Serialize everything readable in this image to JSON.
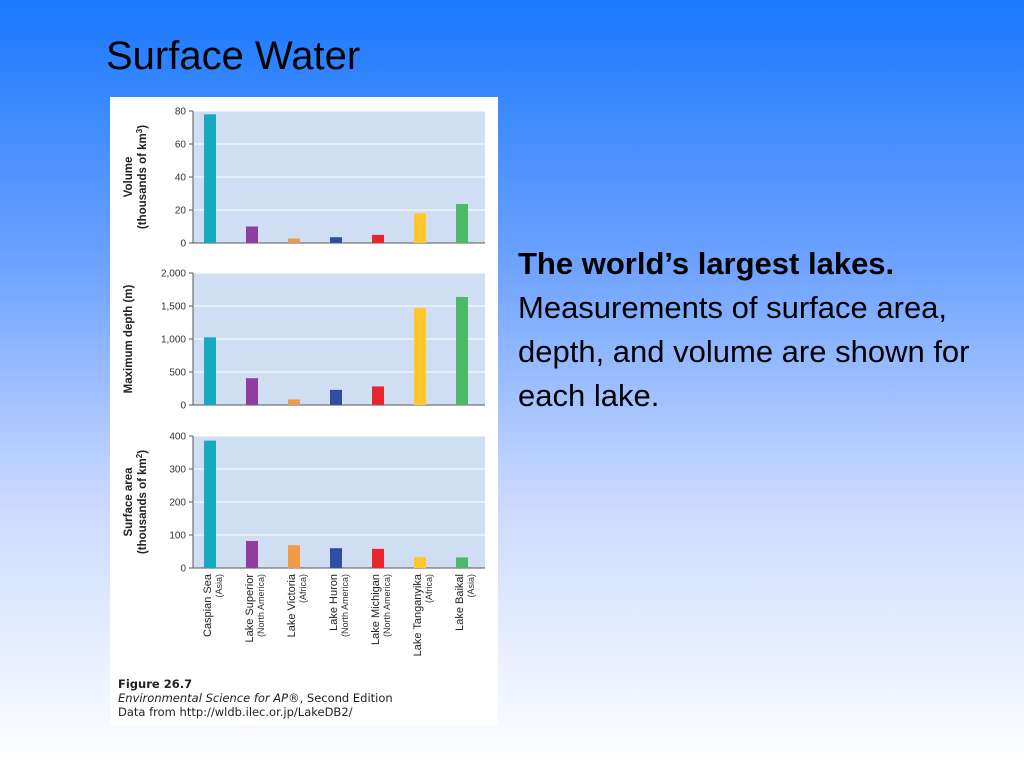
{
  "slide": {
    "title": "Surface Water",
    "description_bold": "The world’s largest lakes.",
    "description_rest": " Measurements of surface area, depth, and volume are shown for each lake."
  },
  "figure": {
    "caption_number": "Figure 26.7",
    "caption_book": "Environmental Science for AP®",
    "caption_edition": ", Second Edition",
    "caption_source": "Data from http://wldb.ilec.or.jp/LakeDB2/"
  },
  "chart_data": [
    {
      "type": "bar",
      "ylabel_line1": "Volume",
      "ylabel_line2": "(thousands of km",
      "ylabel_sup": "3",
      "ylabel_end": ")",
      "ylim": [
        0,
        80
      ],
      "ticks": [
        0,
        20,
        40,
        60,
        80
      ],
      "tick_labels": [
        "0",
        "20",
        "40",
        "60",
        "80"
      ],
      "grid": true,
      "values": [
        78,
        10,
        2.7,
        3.5,
        4.9,
        18,
        23.6
      ]
    },
    {
      "type": "bar",
      "ylabel_line1": "Maximum depth (m)",
      "ylim": [
        0,
        2000
      ],
      "ticks": [
        0,
        500,
        1000,
        1500,
        2000
      ],
      "tick_labels": [
        "0",
        "500",
        "1,000",
        "1,500",
        "2,000"
      ],
      "grid": true,
      "values": [
        1025,
        406,
        84,
        229,
        281,
        1470,
        1637
      ]
    },
    {
      "type": "bar",
      "ylabel_line1": "Surface area",
      "ylabel_line2": "(thousands of km",
      "ylabel_sup": "2",
      "ylabel_end": ")",
      "ylim": [
        0,
        400
      ],
      "ticks": [
        0,
        100,
        200,
        300,
        400
      ],
      "tick_labels": [
        "0",
        "100",
        "200",
        "300",
        "400"
      ],
      "grid": true,
      "values": [
        386,
        82,
        69,
        60,
        58,
        33,
        32
      ]
    }
  ],
  "categories": [
    {
      "name": "Caspian Sea",
      "region": "(Asia)",
      "color": "#17a9c2"
    },
    {
      "name": "Lake Superior",
      "region": "(North America)",
      "color": "#8e3f9e"
    },
    {
      "name": "Lake Victoria",
      "region": "(Africa)",
      "color": "#f39a4a"
    },
    {
      "name": "Lake Huron",
      "region": "(North America)",
      "color": "#2e4fa0"
    },
    {
      "name": "Lake Michigan",
      "region": "(North America)",
      "color": "#e8252c"
    },
    {
      "name": "Lake Tanganyika",
      "region": "(Africa)",
      "color": "#ffc72c"
    },
    {
      "name": "Lake Baikal",
      "region": "(Asia)",
      "color": "#4cb86a"
    }
  ]
}
